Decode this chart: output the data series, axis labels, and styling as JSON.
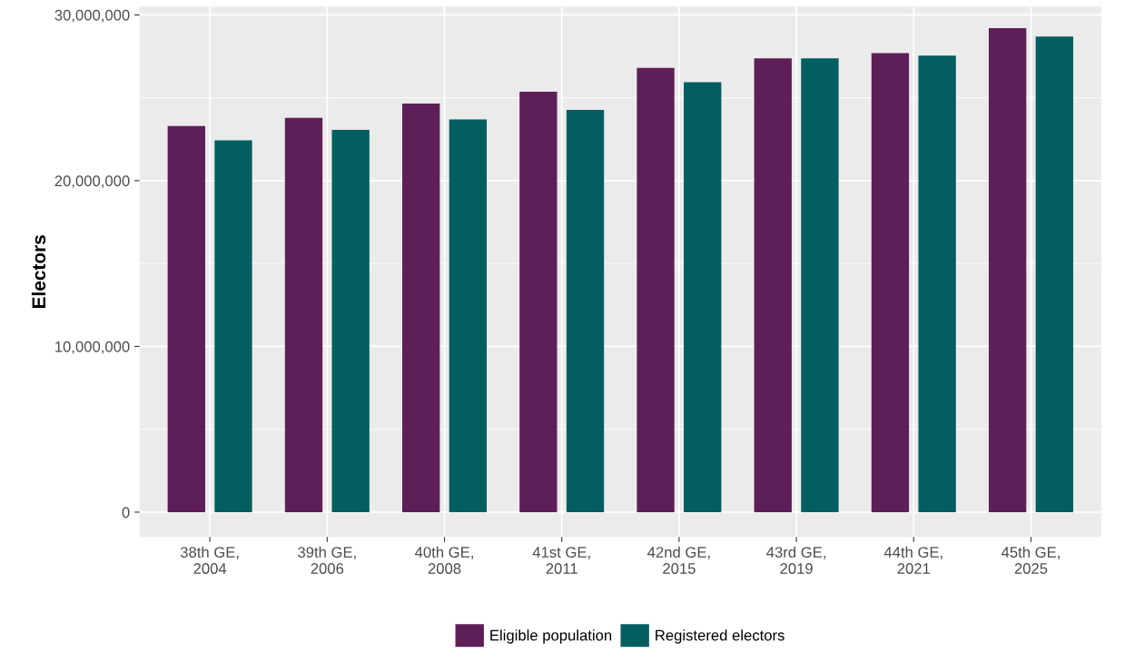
{
  "chart_data": {
    "type": "bar",
    "ylabel": "Electors",
    "categories": [
      "38th GE,\n2004",
      "39th GE,\n2006",
      "40th GE,\n2008",
      "41st GE,\n2011",
      "42nd GE,\n2015",
      "43rd GE,\n2019",
      "44th GE,\n2021",
      "45th GE,\n2025"
    ],
    "series": [
      {
        "name": "Eligible population",
        "color": "#5e1f59",
        "values": [
          23300000,
          23790000,
          24660000,
          25370000,
          26800000,
          27380000,
          27700000,
          29200000
        ]
      },
      {
        "name": "Registered electors",
        "color": "#035e60",
        "values": [
          22430000,
          23060000,
          23700000,
          24270000,
          25940000,
          27380000,
          27550000,
          28700000
        ]
      }
    ],
    "ylim": [
      -1500000,
      30500000
    ],
    "yticks": [
      {
        "value": 0,
        "label": "0"
      },
      {
        "value": 10000000,
        "label": "10,000,000"
      },
      {
        "value": 20000000,
        "label": "20,000,000"
      },
      {
        "value": 30000000,
        "label": "30,000,000"
      }
    ],
    "grid": true,
    "legend": "bottom"
  }
}
